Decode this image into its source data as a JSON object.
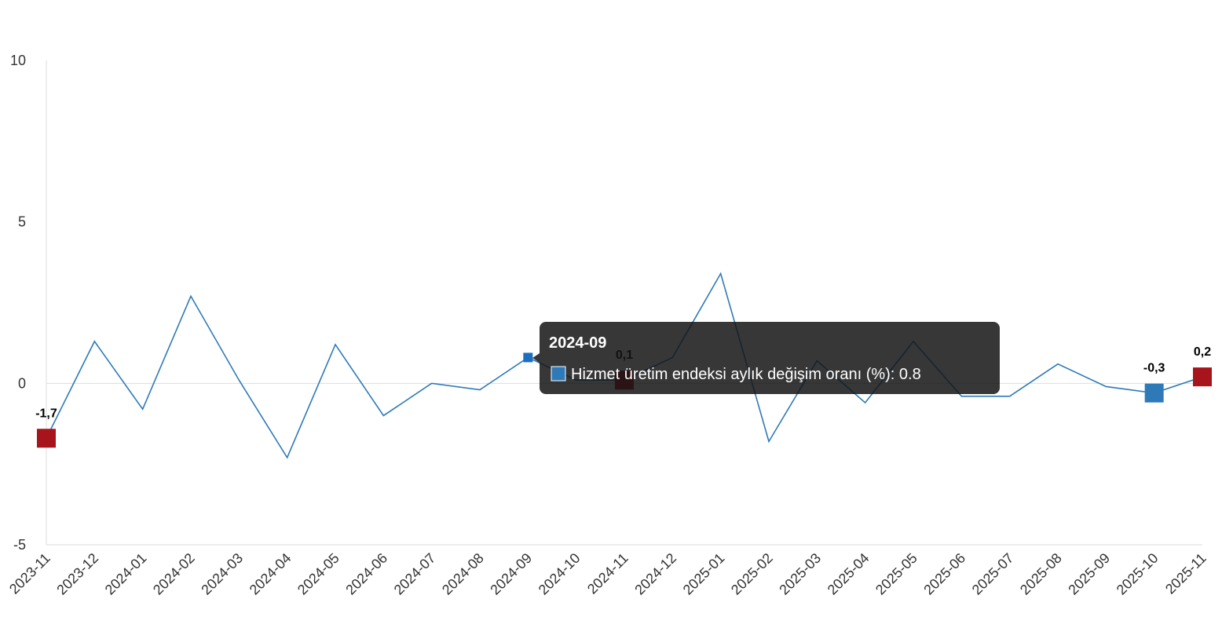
{
  "chart_data": {
    "type": "line",
    "x": [
      "2023-11",
      "2023-12",
      "2024-01",
      "2024-02",
      "2024-03",
      "2024-04",
      "2024-05",
      "2024-06",
      "2024-07",
      "2024-08",
      "2024-09",
      "2024-10",
      "2024-11",
      "2024-12",
      "2025-01",
      "2025-02",
      "2025-03",
      "2025-04",
      "2025-05",
      "2025-06",
      "2025-07",
      "2025-08",
      "2025-09",
      "2025-10",
      "2025-11"
    ],
    "series": [
      {
        "name": "Hizmet üretim endeksi aylık değişim oranı (%)",
        "color": "#2e7ab8",
        "values": [
          -1.7,
          1.3,
          -0.8,
          2.7,
          0.1,
          -2.3,
          1.2,
          -1.0,
          0.0,
          -0.2,
          0.8,
          0.1,
          0.1,
          0.8,
          3.4,
          -1.8,
          0.7,
          -0.6,
          1.3,
          -0.4,
          -0.4,
          0.6,
          -0.1,
          -0.3,
          0.2
        ],
        "value_labels": [
          "-1,7",
          null,
          null,
          null,
          null,
          null,
          null,
          null,
          null,
          null,
          null,
          null,
          "0,1",
          null,
          null,
          null,
          null,
          null,
          null,
          null,
          null,
          null,
          null,
          "-0,3",
          "0,2"
        ],
        "point_colors": [
          "#a8141b",
          null,
          null,
          null,
          null,
          null,
          null,
          null,
          null,
          null,
          "#1a6fc0",
          null,
          "#a8141b",
          null,
          null,
          null,
          null,
          null,
          null,
          null,
          null,
          null,
          null,
          "#2e7ab8",
          "#a8141b"
        ]
      }
    ],
    "ylim": [
      -5,
      10
    ],
    "yticks": [
      10,
      5,
      0,
      -5
    ],
    "tooltip": {
      "title": "2024-09",
      "text": "Hizmet üretim endeksi aylık değişim oranı (%): 0.8",
      "color": "#2e7ab8"
    }
  }
}
